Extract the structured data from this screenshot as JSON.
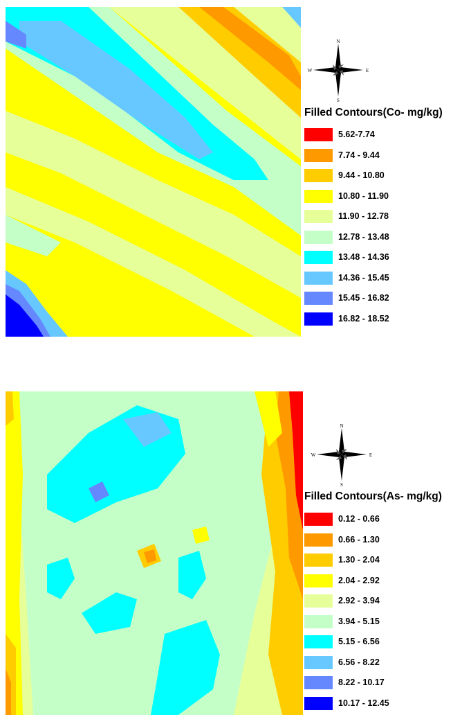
{
  "maps": [
    {
      "id": "co",
      "compass": {
        "north": "N",
        "south": "S",
        "east": "E",
        "west": "W"
      },
      "legend": {
        "title": "Filled Contours(Co- mg/kg)",
        "classes": [
          {
            "range": "5.62-7.74",
            "color": "#ff0000"
          },
          {
            "range": "7.74 - 9.44",
            "color": "#ff9900"
          },
          {
            "range": "9.44 - 10.80",
            "color": "#ffcc00"
          },
          {
            "range": "10.80 - 11.90",
            "color": "#ffff00"
          },
          {
            "range": "11.90 - 12.78",
            "color": "#e6ff99"
          },
          {
            "range": "12.78 - 13.48",
            "color": "#c4ffc8"
          },
          {
            "range": "13.48 - 14.36",
            "color": "#00ffff"
          },
          {
            "range": "14.36 - 15.45",
            "color": "#66c8ff"
          },
          {
            "range": "15.45 - 16.82",
            "color": "#6688ff"
          },
          {
            "range": "16.82 - 18.52",
            "color": "#0000ff"
          }
        ]
      }
    },
    {
      "id": "as",
      "compass": {
        "north": "N",
        "south": "S",
        "east": "E",
        "west": "W"
      },
      "legend": {
        "title": "Filled Contours(As- mg/kg)",
        "classes": [
          {
            "range": "0.12 - 0.66",
            "color": "#ff0000"
          },
          {
            "range": "0.66 - 1.30",
            "color": "#ff9900"
          },
          {
            "range": "1.30 - 2.04",
            "color": "#ffcc00"
          },
          {
            "range": "2.04 - 2.92",
            "color": "#ffff00"
          },
          {
            "range": "2.92 - 3.94",
            "color": "#e6ff99"
          },
          {
            "range": "3.94 - 5.15",
            "color": "#c4ffc8"
          },
          {
            "range": "5.15 - 6.56",
            "color": "#00ffff"
          },
          {
            "range": "6.56 - 8.22",
            "color": "#66c8ff"
          },
          {
            "range": "8.22 - 10.17",
            "color": "#6688ff"
          },
          {
            "range": "10.17 - 12.45",
            "color": "#0000ff"
          }
        ]
      }
    }
  ]
}
